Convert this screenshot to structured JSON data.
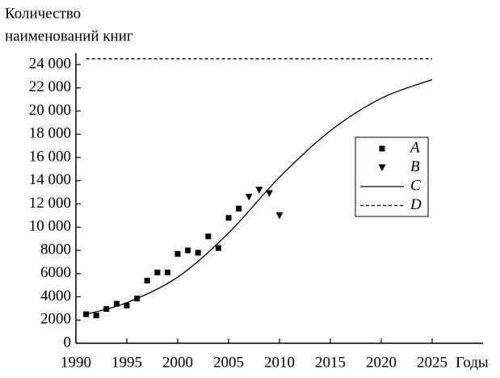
{
  "chart_data": {
    "type": "scatter",
    "ylabel": [
      "Количество",
      "наименований книг"
    ],
    "xlabel": "Годы",
    "xlim": [
      1990,
      2030
    ],
    "xticks": [
      1990,
      1995,
      2000,
      2005,
      2010,
      2015,
      2020,
      2025
    ],
    "ylim": [
      0,
      25000
    ],
    "yticks": [
      0,
      2000,
      4000,
      6000,
      8000,
      {
        "value": 10000,
        "label": "10 000"
      },
      {
        "value": 12000,
        "label": "12 000"
      },
      {
        "value": 14000,
        "label": "14 000"
      },
      {
        "value": 16000,
        "label": "16 000"
      },
      {
        "value": 18000,
        "label": "18 000"
      },
      {
        "value": 20000,
        "label": "20 000"
      },
      {
        "value": 22000,
        "label": "22 000"
      },
      {
        "value": 24000,
        "label": "24 000"
      }
    ],
    "legend": "right",
    "series": [
      {
        "name": "A",
        "color": "#000000",
        "marker": "square",
        "x": [
          1991,
          1992,
          1993,
          1994,
          1995,
          1996,
          1997,
          1998,
          1999,
          2000,
          2001,
          2002,
          2003,
          2004,
          2005,
          2006
        ],
        "values": [
          2500,
          2400,
          2950,
          3400,
          3250,
          3850,
          5400,
          6100,
          6100,
          7700,
          8000,
          7800,
          9200,
          8200,
          10800,
          11600
        ]
      },
      {
        "name": "B",
        "color": "#000000",
        "marker": "triangle",
        "x": [
          2007,
          2008,
          2009,
          2010
        ],
        "values": [
          12600,
          13200,
          12900,
          11000
        ]
      },
      {
        "name": "C",
        "color": "#000000",
        "marker": "line",
        "x": [
          1991,
          1995,
          2000,
          2005,
          2010,
          2015,
          2020,
          2025
        ],
        "values": [
          2500,
          3500,
          5700,
          9500,
          14300,
          18300,
          21100,
          22700
        ]
      },
      {
        "name": "D",
        "color": "#000000",
        "marker": "dashed",
        "x": [
          1991,
          2025
        ],
        "values": [
          24500,
          24500
        ]
      }
    ]
  }
}
